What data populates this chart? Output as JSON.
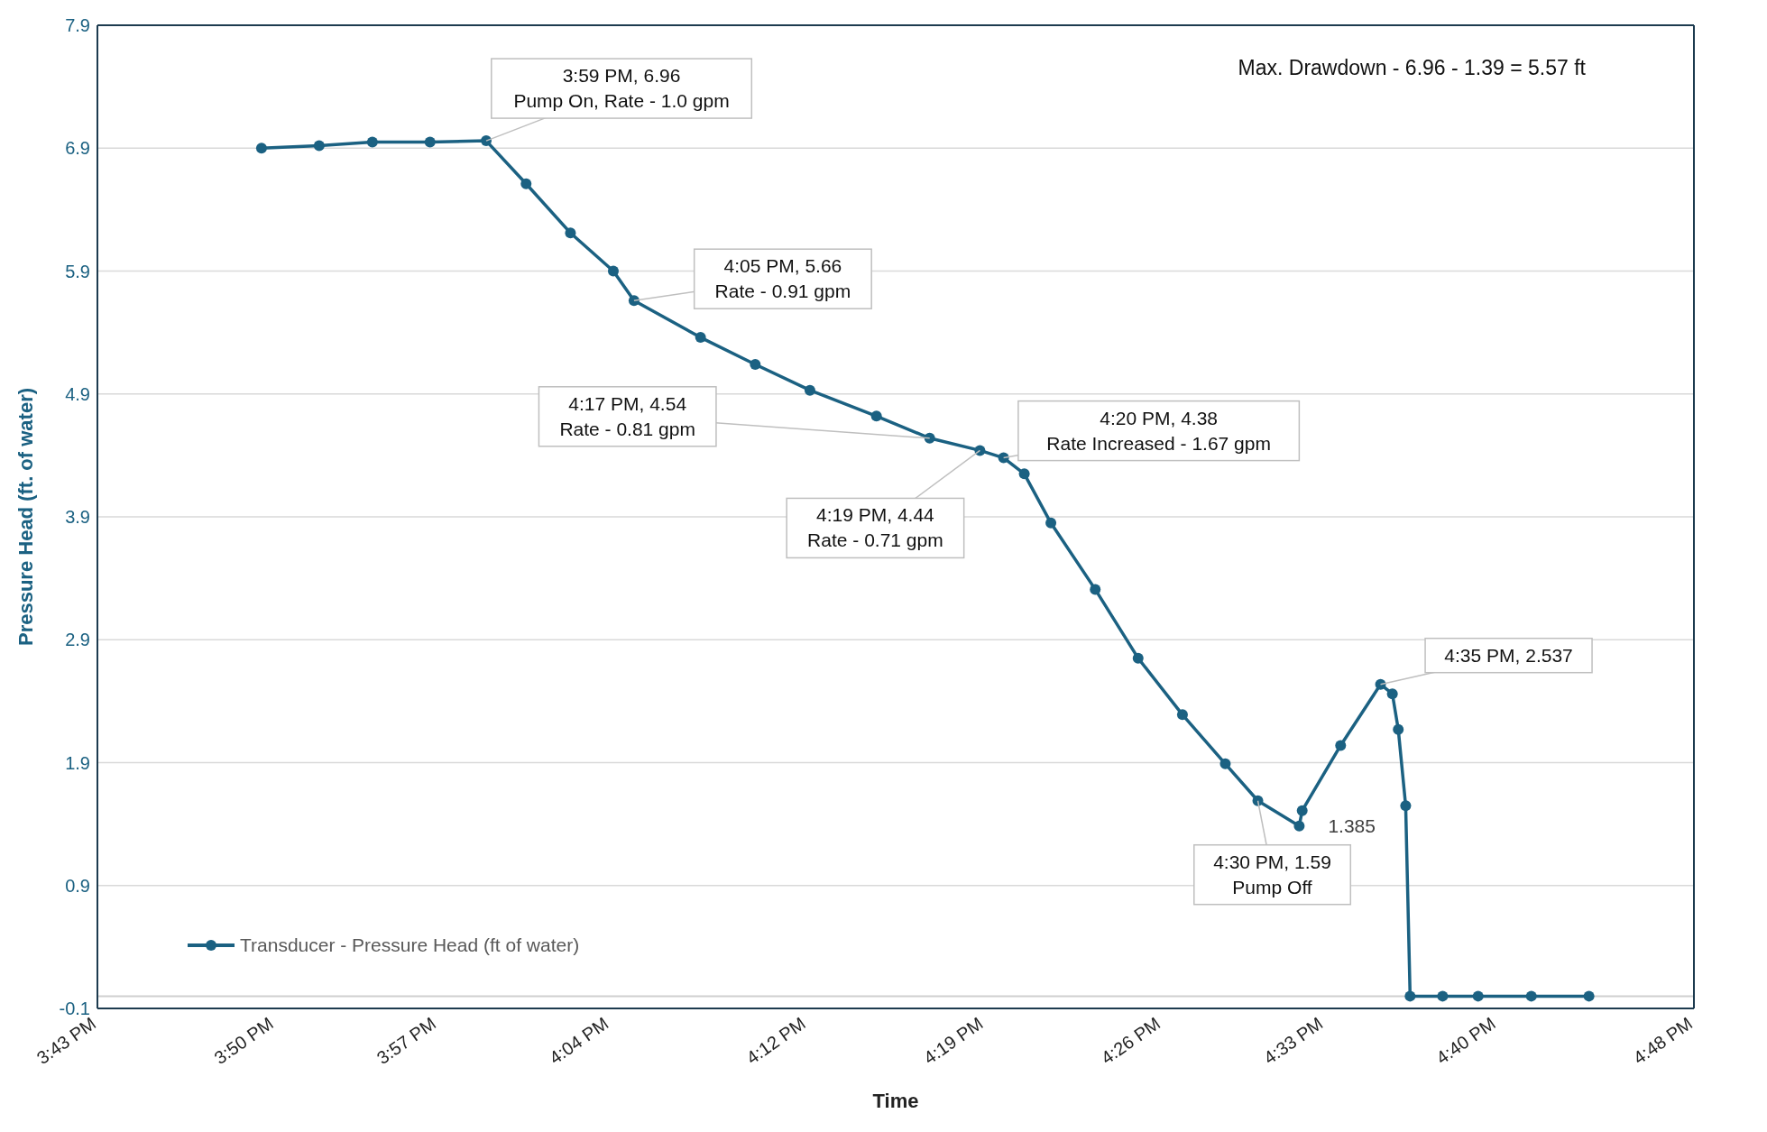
{
  "chart_data": {
    "type": "line",
    "xlabel": "Time",
    "ylabel": "Pressure Head (ft. of water)",
    "xlim": [
      15.72,
      16.8
    ],
    "xticks": [
      {
        "value": 15.72,
        "label": "3:43 PM"
      },
      {
        "value": 15.84,
        "label": "3:50 PM"
      },
      {
        "value": 15.95,
        "label": "3:57 PM"
      },
      {
        "value": 16.0667,
        "label": "4:04 PM"
      },
      {
        "value": 16.2,
        "label": "4:12 PM"
      },
      {
        "value": 16.32,
        "label": "4:19 PM"
      },
      {
        "value": 16.44,
        "label": "4:26 PM"
      },
      {
        "value": 16.55,
        "label": "4:33 PM"
      },
      {
        "value": 16.6667,
        "label": "4:40 PM"
      },
      {
        "value": 16.8,
        "label": "4:48 PM"
      }
    ],
    "ylim": [
      -0.1,
      7.9
    ],
    "yticks": [
      -0.1,
      0.9,
      1.9,
      2.9,
      3.9,
      4.9,
      5.9,
      6.9,
      7.9
    ],
    "grid": "y",
    "legend": "bottom left",
    "marker": "circle",
    "line_style": "solid",
    "ref_lines": [
      {
        "axis": "y",
        "value": 0,
        "color": "#d0d0d0"
      }
    ],
    "series": [
      {
        "name": "Transducer - Pressure Head (ft of water)",
        "color": "#1b6182",
        "x": [
          15.831,
          15.87,
          15.906,
          15.945,
          15.983,
          16.01,
          16.04,
          16.069,
          16.083,
          16.128,
          16.165,
          16.202,
          16.247,
          16.283,
          16.317,
          16.333,
          16.347,
          16.365,
          16.395,
          16.424,
          16.454,
          16.483,
          16.505,
          16.533,
          16.535,
          16.561,
          16.588,
          16.596,
          16.6,
          16.605,
          16.608,
          16.63,
          16.654,
          16.69,
          16.729
        ],
        "values": [
          6.9,
          6.92,
          6.95,
          6.95,
          6.96,
          6.61,
          6.21,
          5.9,
          5.66,
          5.36,
          5.14,
          4.93,
          4.72,
          4.54,
          4.44,
          4.38,
          4.25,
          3.85,
          3.31,
          2.75,
          2.29,
          1.89,
          1.59,
          1.385,
          1.51,
          2.04,
          2.537,
          2.46,
          2.17,
          1.55,
          0,
          0,
          0,
          0,
          0
        ]
      }
    ],
    "annotations": [
      {
        "text": "3:59 PM, 6.96\nPump On, Rate - 1.0 gpm",
        "x": 15.983,
        "y": 6.96
      },
      {
        "text": "4:05 PM, 5.66\nRate - 0.91 gpm",
        "x": 16.083,
        "y": 5.66
      },
      {
        "text": "4:17 PM, 4.54\nRate - 0.81 gpm",
        "x": 16.283,
        "y": 4.54
      },
      {
        "text": "4:19 PM, 4.44\nRate - 0.71 gpm",
        "x": 16.317,
        "y": 4.44
      },
      {
        "text": "4:20 PM, 4.38\nRate Increased - 1.67 gpm",
        "x": 16.333,
        "y": 4.38
      },
      {
        "text": "4:30 PM, 1.59\nPump Off",
        "x": 16.505,
        "y": 1.59
      },
      {
        "text": "4:35 PM, 2.537",
        "x": 16.588,
        "y": 2.537
      },
      {
        "text": "1.385",
        "x": 16.533,
        "y": 1.385
      },
      "Max. Drawdown - 6.96 - 1.39 = 5.57 ft"
    ]
  }
}
